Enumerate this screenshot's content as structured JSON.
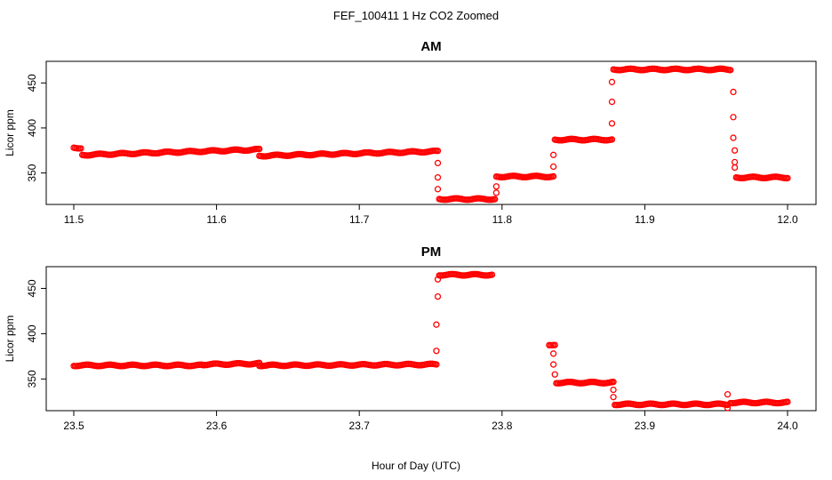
{
  "title": "FEF_100411 1 Hz CO2 Zoomed",
  "xlabel": "Hour of Day (UTC)",
  "series_color": "#ff0000",
  "chart_data": [
    {
      "type": "scatter",
      "title": "AM",
      "xlabel": "",
      "ylabel": "Licor ppm",
      "xlim": [
        11.5,
        12.0
      ],
      "ylim": [
        315,
        474
      ],
      "xticks": [
        "11.5",
        "11.6",
        "11.7",
        "11.8",
        "11.9",
        "12.0"
      ],
      "yticks": [
        "350",
        "400",
        "450"
      ],
      "segments": [
        {
          "x": [
            11.5,
            11.505
          ],
          "y": [
            378,
            378
          ]
        },
        {
          "x": [
            11.506,
            11.63
          ],
          "y": [
            370,
            376
          ]
        },
        {
          "x": [
            11.63,
            11.755
          ],
          "y": [
            369,
            374
          ]
        },
        {
          "x": [
            11.756,
            11.795
          ],
          "y": [
            321,
            321
          ]
        },
        {
          "x": [
            11.796,
            11.836
          ],
          "y": [
            346,
            346
          ]
        },
        {
          "x": [
            11.837,
            11.877
          ],
          "y": [
            387,
            387
          ]
        },
        {
          "x": [
            11.878,
            11.96
          ],
          "y": [
            465,
            465
          ]
        },
        {
          "x": [
            11.964,
            12.0
          ],
          "y": [
            345,
            345
          ]
        }
      ],
      "transition_points": [
        {
          "x": 11.755,
          "y": 361
        },
        {
          "x": 11.755,
          "y": 345
        },
        {
          "x": 11.755,
          "y": 332
        },
        {
          "x": 11.796,
          "y": 335
        },
        {
          "x": 11.796,
          "y": 328
        },
        {
          "x": 11.836,
          "y": 370
        },
        {
          "x": 11.836,
          "y": 357
        },
        {
          "x": 11.877,
          "y": 451
        },
        {
          "x": 11.877,
          "y": 429
        },
        {
          "x": 11.877,
          "y": 405
        },
        {
          "x": 11.962,
          "y": 440
        },
        {
          "x": 11.962,
          "y": 412
        },
        {
          "x": 11.962,
          "y": 389
        },
        {
          "x": 11.963,
          "y": 375
        },
        {
          "x": 11.963,
          "y": 362
        },
        {
          "x": 11.963,
          "y": 356
        }
      ]
    },
    {
      "type": "scatter",
      "title": "PM",
      "xlabel": "Hour of Day (UTC)",
      "ylabel": "Licor ppm",
      "xlim": [
        23.5,
        24.0
      ],
      "ylim": [
        315,
        474
      ],
      "xticks": [
        "23.5",
        "23.6",
        "23.7",
        "23.8",
        "23.9",
        "24.0"
      ],
      "yticks": [
        "350",
        "400",
        "450"
      ],
      "segments": [
        {
          "x": [
            23.5,
            23.59
          ],
          "y": [
            365,
            365
          ]
        },
        {
          "x": [
            23.59,
            23.63
          ],
          "y": [
            366,
            367
          ]
        },
        {
          "x": [
            23.63,
            23.754
          ],
          "y": [
            365,
            366
          ]
        },
        {
          "x": [
            23.756,
            23.793
          ],
          "y": [
            465,
            465
          ]
        },
        {
          "x": [
            23.833,
            23.837
          ],
          "y": [
            388,
            388
          ]
        },
        {
          "x": [
            23.838,
            23.878
          ],
          "y": [
            346,
            346
          ]
        },
        {
          "x": [
            23.879,
            23.958
          ],
          "y": [
            322,
            322
          ]
        },
        {
          "x": [
            23.96,
            24.0
          ],
          "y": [
            324,
            324
          ]
        }
      ],
      "transition_points": [
        {
          "x": 23.754,
          "y": 381
        },
        {
          "x": 23.754,
          "y": 410
        },
        {
          "x": 23.755,
          "y": 441
        },
        {
          "x": 23.755,
          "y": 460
        },
        {
          "x": 23.836,
          "y": 378
        },
        {
          "x": 23.836,
          "y": 366
        },
        {
          "x": 23.837,
          "y": 355
        },
        {
          "x": 23.878,
          "y": 338
        },
        {
          "x": 23.878,
          "y": 330
        },
        {
          "x": 23.958,
          "y": 318
        },
        {
          "x": 23.958,
          "y": 333
        }
      ]
    }
  ]
}
